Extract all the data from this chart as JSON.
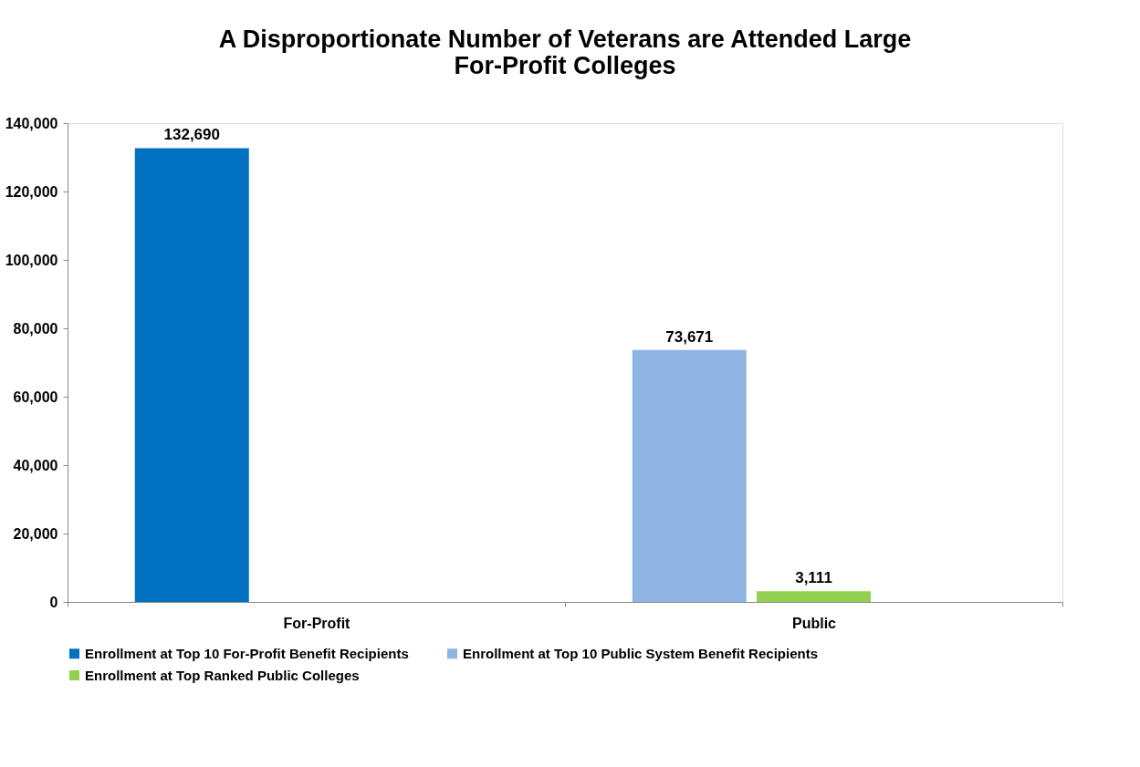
{
  "chart_data": {
    "type": "bar",
    "title": "A Disproportionate Number of Veterans are Attended Large For-Profit Colleges",
    "categories": [
      "For-Profit",
      "Public"
    ],
    "series": [
      {
        "name": "Enrollment at Top 10 For-Profit Benefit Recipients",
        "color": "#0070c0",
        "values": [
          132690,
          null
        ],
        "value_labels": [
          "132,690",
          null
        ]
      },
      {
        "name": "Enrollment at Top 10 Public System Benefit Recipients",
        "color": "#8db4e2",
        "values": [
          null,
          73671
        ],
        "value_labels": [
          null,
          "73,671"
        ]
      },
      {
        "name": "Enrollment at Top Ranked Public Colleges",
        "color": "#92d050",
        "values": [
          null,
          3111
        ],
        "value_labels": [
          null,
          "3,111"
        ]
      }
    ],
    "ylim": [
      0,
      140000
    ],
    "yticks": [
      0,
      {
        "value": 20000,
        "label": "20,000"
      },
      {
        "value": 40000,
        "label": "40,000"
      },
      {
        "value": 60000,
        "label": "60,000"
      },
      {
        "value": 80000,
        "label": "80,000"
      },
      {
        "value": 100000,
        "label": "100,000"
      },
      {
        "value": 120000,
        "label": "120,000"
      },
      {
        "value": 140000,
        "label": "140,000"
      }
    ],
    "grid": false,
    "legend": "bottom"
  }
}
